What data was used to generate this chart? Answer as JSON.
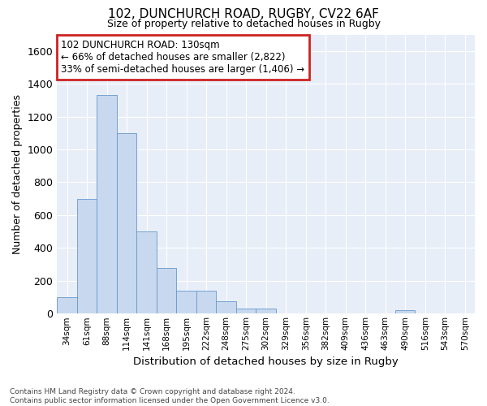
{
  "title_line1": "102, DUNCHURCH ROAD, RUGBY, CV22 6AF",
  "title_line2": "Size of property relative to detached houses in Rugby",
  "xlabel": "Distribution of detached houses by size in Rugby",
  "ylabel": "Number of detached properties",
  "bar_color": "#c8d8ee",
  "bar_edge_color": "#6699cc",
  "annotation_box_edge_color": "#cc2222",
  "bg_color": "#e8eef8",
  "grid_color": "#ffffff",
  "categories": [
    "34sqm",
    "61sqm",
    "88sqm",
    "114sqm",
    "141sqm",
    "168sqm",
    "195sqm",
    "222sqm",
    "248sqm",
    "275sqm",
    "302sqm",
    "329sqm",
    "356sqm",
    "382sqm",
    "409sqm",
    "436sqm",
    "463sqm",
    "490sqm",
    "516sqm",
    "543sqm",
    "570sqm"
  ],
  "values": [
    100,
    700,
    1330,
    1100,
    500,
    280,
    140,
    140,
    75,
    30,
    30,
    0,
    0,
    0,
    0,
    0,
    0,
    20,
    0,
    0,
    0
  ],
  "annotation_lines": [
    "102 DUNCHURCH ROAD: 130sqm",
    "← 66% of detached houses are smaller (2,822)",
    "33% of semi-detached houses are larger (1,406) →"
  ],
  "ylim": [
    0,
    1700
  ],
  "yticks": [
    0,
    200,
    400,
    600,
    800,
    1000,
    1200,
    1400,
    1600
  ],
  "footnote_line1": "Contains HM Land Registry data © Crown copyright and database right 2024.",
  "footnote_line2": "Contains public sector information licensed under the Open Government Licence v3.0."
}
